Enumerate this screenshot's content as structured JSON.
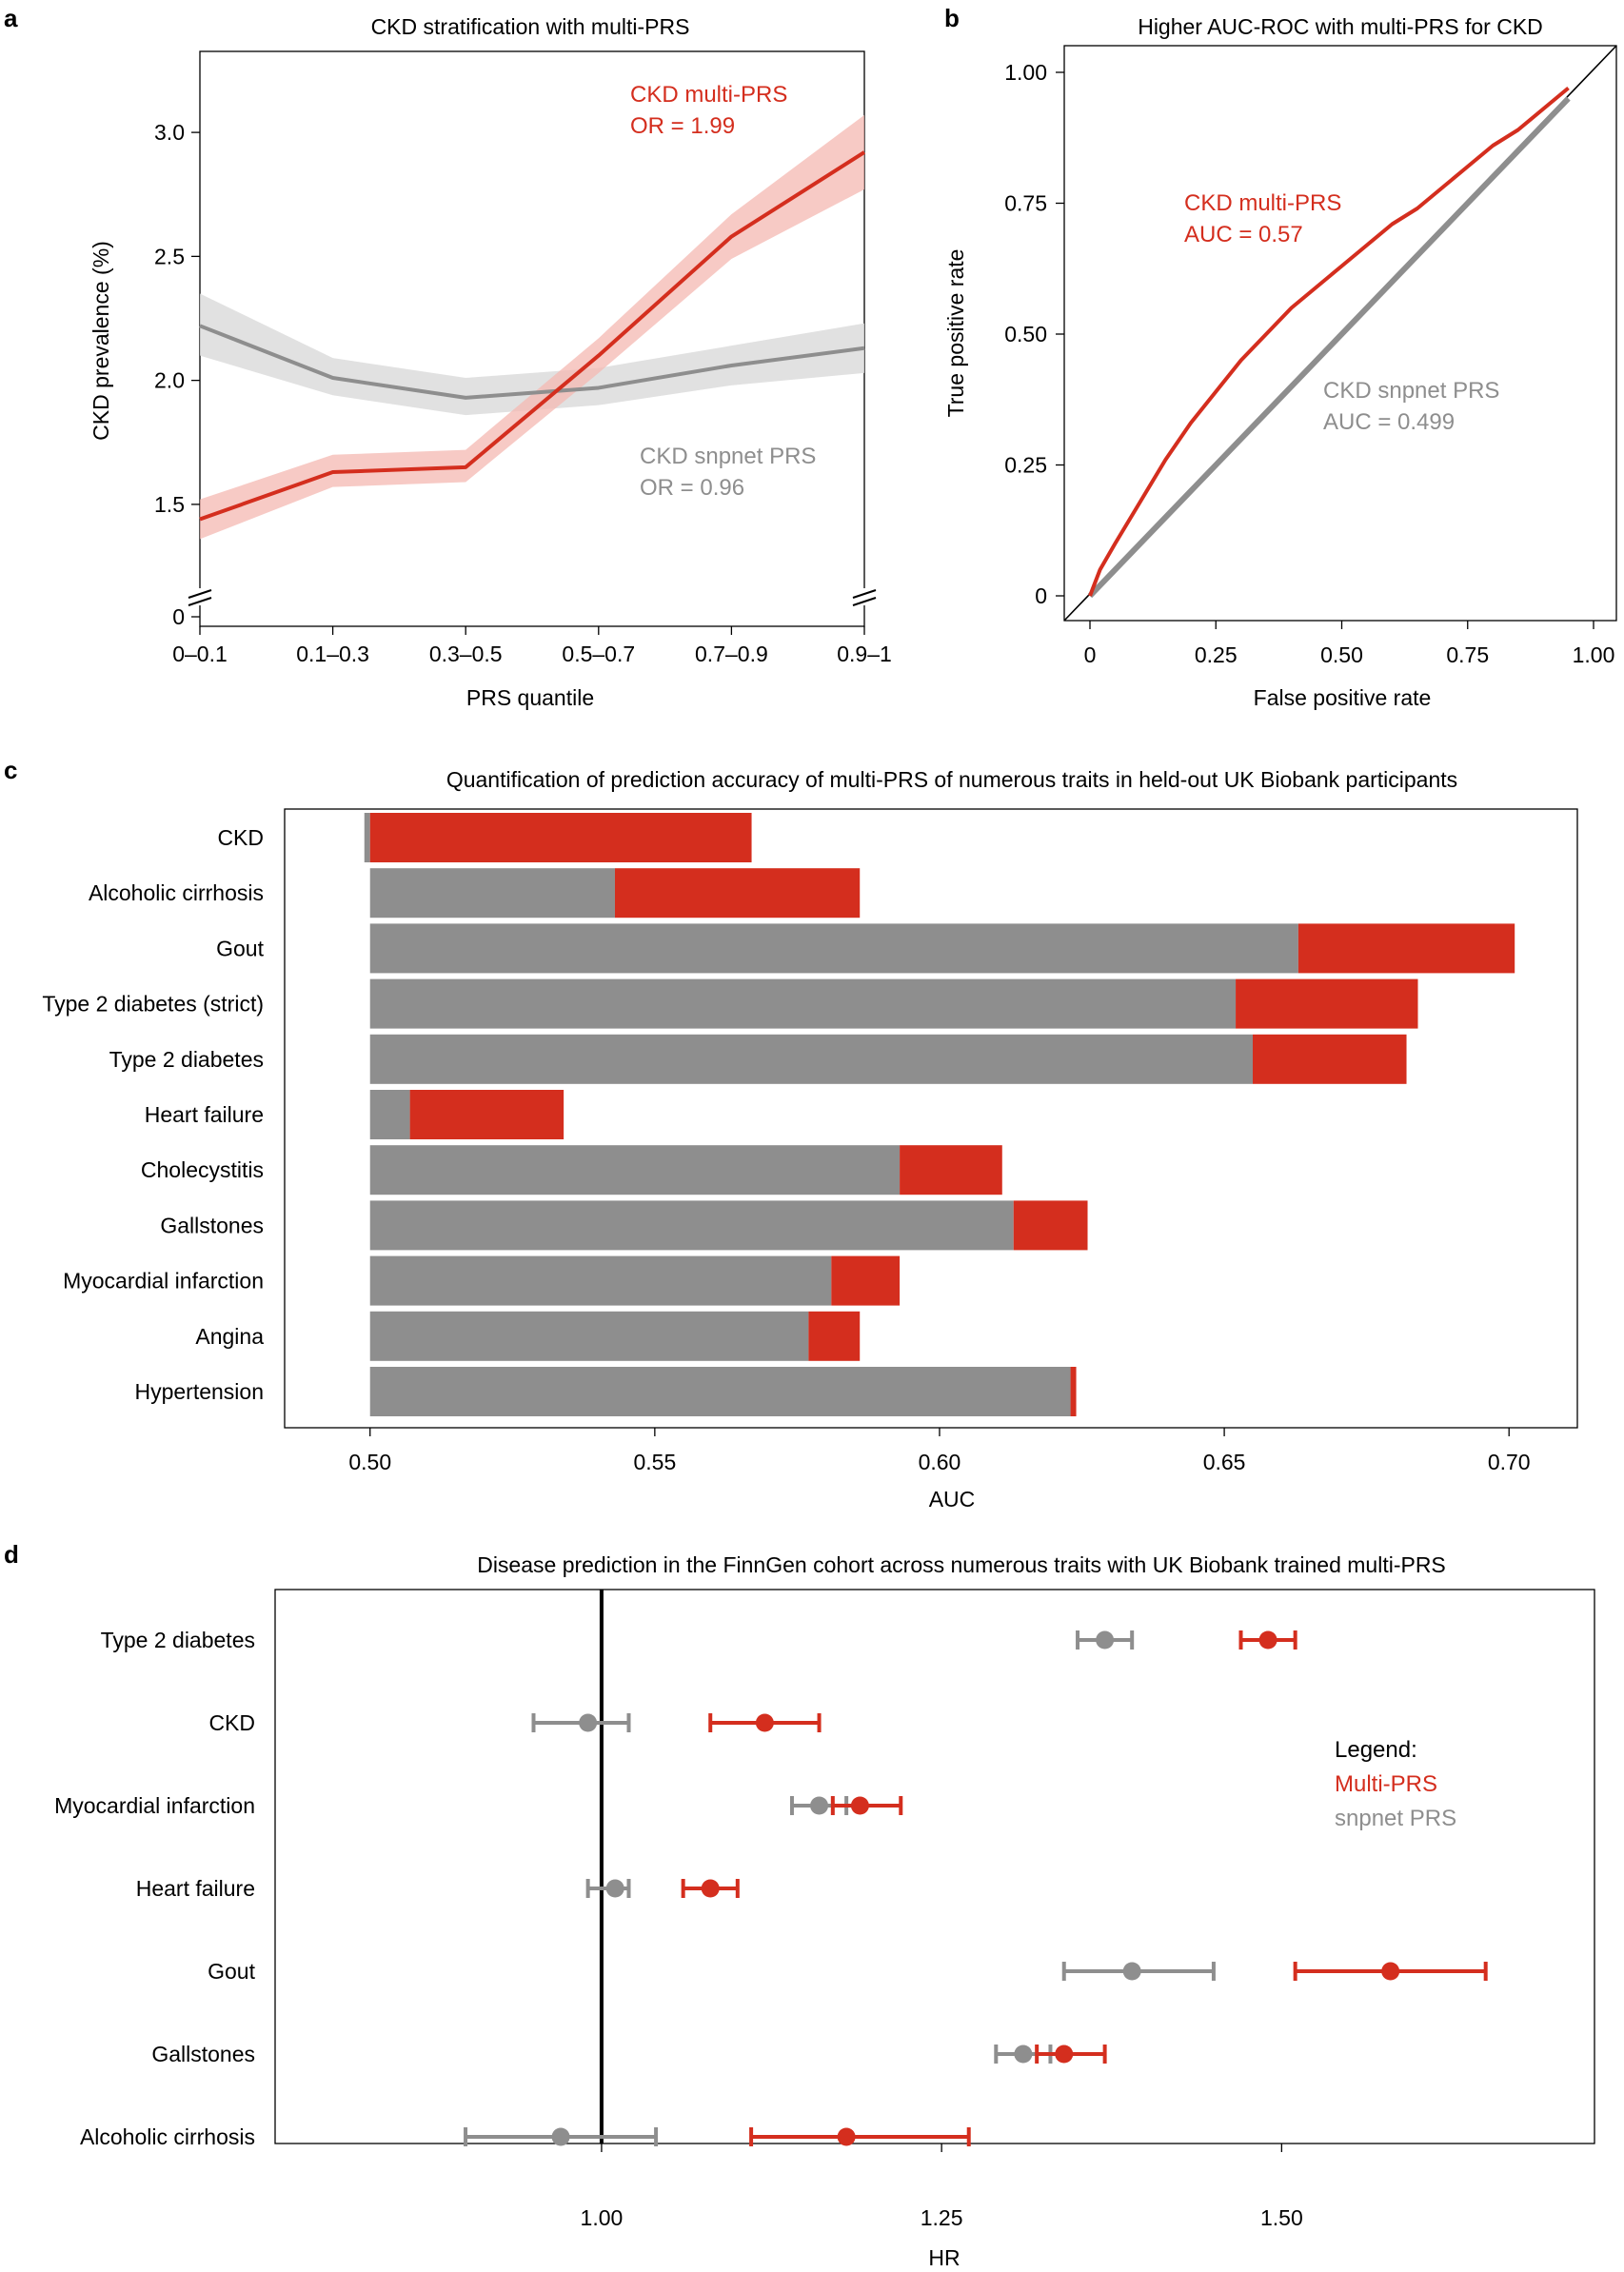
{
  "colors": {
    "multi": "#d42e1e",
    "multi_band": "#f4b8b2",
    "snpnet": "#8e8e8e",
    "snpnet_band": "#dcdcdc",
    "axis": "#000000",
    "text": "#000000"
  },
  "chart_data": [
    {
      "panel": "a",
      "type": "line",
      "title": "CKD stratification with multi-PRS",
      "xlabel": "PRS quantile",
      "ylabel": "CKD prevalence (%)",
      "categories": [
        "0–0.1",
        "0.1–0.3",
        "0.3–0.5",
        "0.5–0.7",
        "0.7–0.9",
        "0.9–1"
      ],
      "yticks": [
        "0",
        "1.5",
        "2.0",
        "2.5",
        "3.0"
      ],
      "ylim": [
        1.3,
        3.2
      ],
      "axis_break": true,
      "series": [
        {
          "name": "CKD multi-PRS",
          "annotation": "OR = 1.99",
          "values": [
            1.44,
            1.63,
            1.65,
            2.1,
            2.58,
            2.92
          ],
          "lower": [
            1.36,
            1.57,
            1.59,
            2.03,
            2.49,
            2.77
          ],
          "upper": [
            1.52,
            1.7,
            1.72,
            2.17,
            2.67,
            3.07
          ]
        },
        {
          "name": "CKD snpnet PRS",
          "annotation": "OR = 0.96",
          "values": [
            2.22,
            2.01,
            1.93,
            1.97,
            2.06,
            2.13
          ],
          "lower": [
            2.1,
            1.94,
            1.86,
            1.9,
            1.98,
            2.03
          ],
          "upper": [
            2.35,
            2.09,
            2.01,
            2.05,
            2.14,
            2.23
          ]
        }
      ]
    },
    {
      "panel": "b",
      "type": "line",
      "title": "Higher AUC-ROC with multi-PRS for CKD",
      "xlabel": "False positive rate",
      "ylabel": "True positive rate",
      "xticks": [
        "0",
        "0.25",
        "0.50",
        "0.75",
        "1.00"
      ],
      "yticks": [
        "0",
        "0.25",
        "0.50",
        "0.75",
        "1.00"
      ],
      "xlim": [
        0,
        1
      ],
      "ylim": [
        0,
        1
      ],
      "series": [
        {
          "name": "CKD multi-PRS",
          "annotation": "AUC = 0.57",
          "x": [
            0,
            0.02,
            0.05,
            0.1,
            0.15,
            0.2,
            0.25,
            0.3,
            0.35,
            0.4,
            0.45,
            0.5,
            0.55,
            0.6,
            0.65,
            0.7,
            0.75,
            0.8,
            0.85,
            0.9,
            0.95
          ],
          "y": [
            0,
            0.05,
            0.1,
            0.18,
            0.26,
            0.33,
            0.39,
            0.45,
            0.5,
            0.55,
            0.59,
            0.63,
            0.67,
            0.71,
            0.74,
            0.78,
            0.82,
            0.86,
            0.89,
            0.93,
            0.97
          ]
        },
        {
          "name": "CKD snpnet PRS",
          "annotation": "AUC = 0.499",
          "x": [
            0,
            0.05,
            0.1,
            0.2,
            0.3,
            0.4,
            0.5,
            0.6,
            0.7,
            0.8,
            0.9,
            0.95
          ],
          "y": [
            0,
            0.05,
            0.1,
            0.2,
            0.3,
            0.4,
            0.5,
            0.6,
            0.7,
            0.8,
            0.9,
            0.95
          ]
        }
      ]
    },
    {
      "panel": "c",
      "type": "bar",
      "orientation": "horizontal",
      "title": "Quantification of prediction accuracy of multi-PRS of numerous traits in held-out UK Biobank participants",
      "xlabel": "AUC",
      "xticks": [
        "0.50",
        "0.55",
        "0.60",
        "0.65",
        "0.70"
      ],
      "xlim": [
        0.485,
        0.712
      ],
      "categories": [
        "CKD",
        "Alcoholic cirrhosis",
        "Gout",
        "Type 2 diabetes (strict)",
        "Type 2 diabetes",
        "Heart failure",
        "Cholecystitis",
        "Gallstones",
        "Myocardial infarction",
        "Angina",
        "Hypertension"
      ],
      "series": [
        {
          "name": "snpnet PRS",
          "values": [
            0.499,
            0.543,
            0.663,
            0.652,
            0.655,
            0.507,
            0.593,
            0.613,
            0.581,
            0.577,
            0.623
          ]
        },
        {
          "name": "Multi-PRS",
          "values": [
            0.567,
            0.586,
            0.701,
            0.684,
            0.682,
            0.534,
            0.611,
            0.626,
            0.593,
            0.586,
            0.624
          ]
        }
      ]
    },
    {
      "panel": "d",
      "type": "scatter",
      "subtype": "forest",
      "title": "Disease prediction in the FinnGen cohort across numerous traits with UK Biobank trained multi-PRS",
      "xlabel": "HR",
      "xticks": [
        "1.00",
        "1.25",
        "1.50"
      ],
      "xlim": [
        0.76,
        1.73
      ],
      "reference_line": 1.0,
      "categories": [
        "Type 2 diabetes",
        "CKD",
        "Myocardial infarction",
        "Heart failure",
        "Gout",
        "Gallstones",
        "Alcoholic cirrhosis"
      ],
      "legend_title": "Legend:",
      "series": [
        {
          "name": "snpnet PRS",
          "hr": [
            1.37,
            0.99,
            1.16,
            1.01,
            1.39,
            1.31,
            0.97
          ],
          "lower": [
            1.35,
            0.95,
            1.14,
            0.99,
            1.34,
            1.29,
            0.9
          ],
          "upper": [
            1.39,
            1.02,
            1.18,
            1.02,
            1.45,
            1.33,
            1.04
          ]
        },
        {
          "name": "Multi-PRS",
          "hr": [
            1.49,
            1.12,
            1.19,
            1.08,
            1.58,
            1.34,
            1.18
          ],
          "lower": [
            1.47,
            1.08,
            1.17,
            1.06,
            1.51,
            1.32,
            1.11
          ],
          "upper": [
            1.51,
            1.16,
            1.22,
            1.1,
            1.65,
            1.37,
            1.27
          ]
        }
      ]
    }
  ],
  "panel_labels": [
    "a",
    "b",
    "c",
    "d"
  ]
}
